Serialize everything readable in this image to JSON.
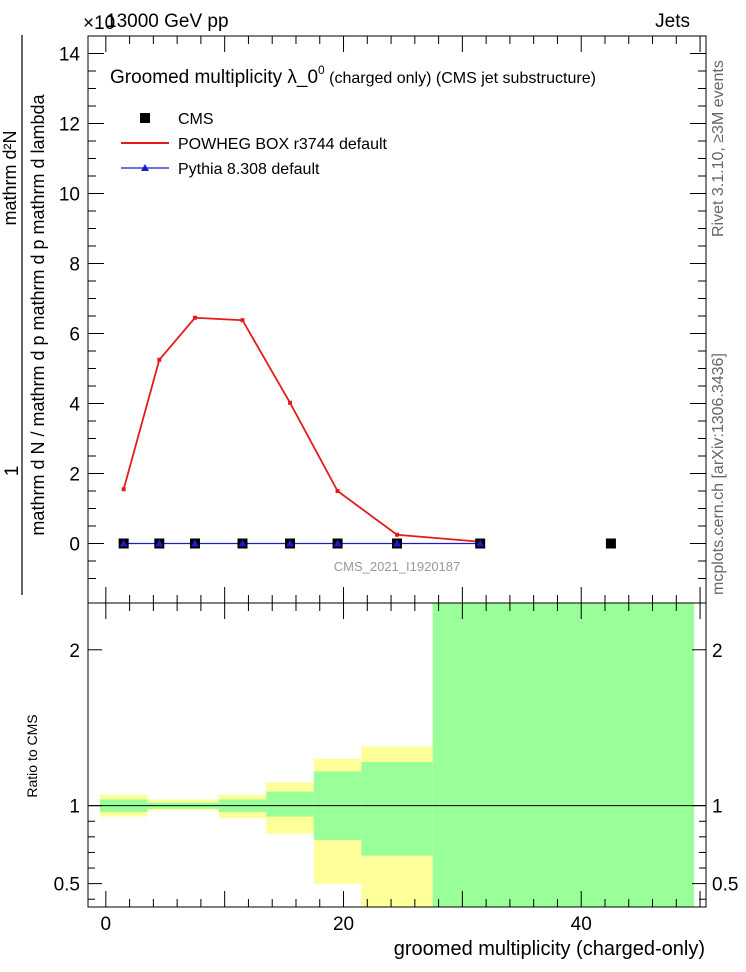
{
  "header": {
    "energy_label": "13000 GeV pp",
    "exponent_label": "×10",
    "category_label": "Jets"
  },
  "side_labels": {
    "rivet": "Rivet 3.1.10, ≥3M events",
    "mcplots": "mcplots.cern.ch [arXiv:1306.3436]"
  },
  "main_plot": {
    "title_text": "Groomed multiplicity   λ_0",
    "title_sup": "0",
    "title_suffix": " (charged only) (CMS jet substructure)",
    "y_label_numerator": "1",
    "y_label_top": "mathrm d²N",
    "y_label_middle": "mathrm d N / mathrm d p   mathrm d p   mathrm d lambda",
    "analysis_id": "CMS_2021_I1920187"
  },
  "ratio_plot": {
    "y_label": "Ratio to CMS"
  },
  "x_axis_label": "groomed multiplicity (charged-only)",
  "colors": {
    "powheg": "#e31b1b",
    "pythia": "#1b1bcc",
    "band_inner": "#99ff99",
    "band_outer": "#ffff99"
  },
  "chart_data": [
    {
      "type": "line",
      "xlim": [
        -1.5,
        50.5
      ],
      "ylim": [
        -1.7,
        14.5
      ],
      "y_scale_note": "values in units of 10^-3 (exponent partially obscured)",
      "xticks": [
        0,
        20,
        40
      ],
      "yticks": [
        0,
        2,
        4,
        6,
        8,
        10,
        12,
        14
      ],
      "legend_position": "top-left",
      "series": [
        {
          "name": "CMS",
          "marker": "square",
          "x": [
            1.5,
            4.5,
            7.5,
            11.5,
            15.5,
            19.5,
            24.5,
            31.5,
            42.5
          ],
          "y": [
            0,
            0,
            0,
            0,
            0,
            0,
            0,
            0,
            0
          ]
        },
        {
          "name": "POWHEG BOX r3744 default",
          "marker": "line",
          "x": [
            1.5,
            4.5,
            7.5,
            11.5,
            15.5,
            19.5,
            24.5,
            31.5
          ],
          "y": [
            1.55,
            5.25,
            6.45,
            6.38,
            4.02,
            1.5,
            0.25,
            0.05
          ]
        },
        {
          "name": "Pythia 8.308 default",
          "marker": "triangle",
          "x": [
            1.5,
            4.5,
            7.5,
            11.5,
            15.5,
            19.5,
            24.5,
            31.5
          ],
          "y": [
            0,
            0,
            0,
            0,
            0,
            0,
            0,
            0
          ]
        }
      ]
    },
    {
      "type": "area",
      "xlim": [
        -1.5,
        50.5
      ],
      "ylim": [
        0.35,
        2.3
      ],
      "xticks": [
        0,
        20,
        40
      ],
      "yticks": [
        0.5,
        1,
        2
      ],
      "reference_line": 1,
      "bins": [
        {
          "x0": -0.5,
          "x1": 3.5,
          "outer": [
            0.93,
            1.07
          ],
          "inner": [
            0.96,
            1.04
          ]
        },
        {
          "x0": 3.5,
          "x1": 7.5,
          "outer": [
            0.97,
            1.04
          ],
          "inner": [
            0.98,
            1.02
          ]
        },
        {
          "x0": 7.5,
          "x1": 9.5,
          "outer": [
            0.97,
            1.04
          ],
          "inner": [
            0.98,
            1.02
          ]
        },
        {
          "x0": 9.5,
          "x1": 13.5,
          "outer": [
            0.92,
            1.07
          ],
          "inner": [
            0.96,
            1.04
          ]
        },
        {
          "x0": 13.5,
          "x1": 17.5,
          "outer": [
            0.82,
            1.15
          ],
          "inner": [
            0.93,
            1.09
          ]
        },
        {
          "x0": 17.5,
          "x1": 21.5,
          "outer": [
            0.5,
            1.3
          ],
          "inner": [
            0.78,
            1.22
          ]
        },
        {
          "x0": 21.5,
          "x1": 27.5,
          "outer": [
            0.35,
            1.38
          ],
          "inner": [
            0.68,
            1.28
          ]
        },
        {
          "x0": 27.5,
          "x1": 49.5,
          "outer": [
            0.35,
            2.3
          ],
          "inner": [
            0.35,
            2.3
          ]
        }
      ]
    }
  ]
}
